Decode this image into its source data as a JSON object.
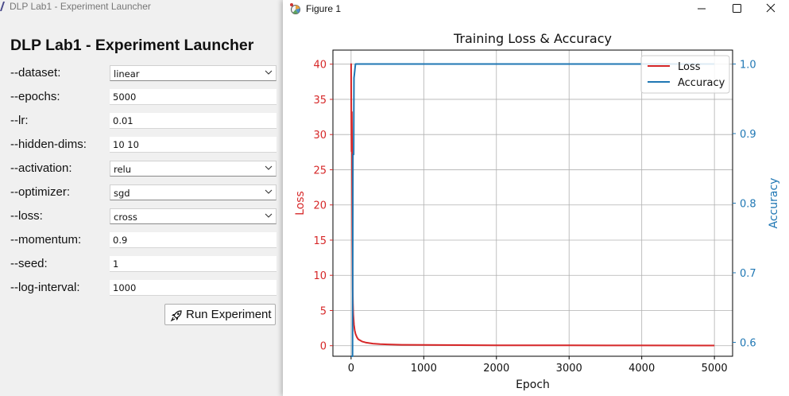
{
  "launcher": {
    "window_title": "DLP Lab1 - Experiment Launcher",
    "heading": "DLP Lab1 - Experiment Launcher",
    "fields": [
      {
        "label": "--dataset:",
        "value": "linear",
        "type": "select"
      },
      {
        "label": "--epochs:",
        "value": "5000",
        "type": "entry"
      },
      {
        "label": "--lr:",
        "value": "0.01",
        "type": "entry"
      },
      {
        "label": "--hidden-dims:",
        "value": "10 10",
        "type": "entry"
      },
      {
        "label": "--activation:",
        "value": "relu",
        "type": "select"
      },
      {
        "label": "--optimizer:",
        "value": "sgd",
        "type": "select"
      },
      {
        "label": "--loss:",
        "value": "cross",
        "type": "select"
      },
      {
        "label": "--momentum:",
        "value": "0.9",
        "type": "entry"
      },
      {
        "label": "--seed:",
        "value": "1",
        "type": "entry"
      },
      {
        "label": "--log-interval:",
        "value": "1000",
        "type": "entry"
      }
    ],
    "run_button_label": "Run Experiment",
    "run_button_icon": "rocket-icon"
  },
  "figure": {
    "window_title": "Figure 1",
    "controls": [
      "minimize-icon",
      "maximize-icon",
      "close-icon"
    ]
  },
  "chart_data": {
    "type": "line",
    "title": "Training Loss & Accuracy",
    "xlabel": "Epoch",
    "ylabel_left": "Loss",
    "ylabel_right": "Accuracy",
    "xlim": [
      -250,
      5250
    ],
    "ylim_left": [
      -1.5,
      42
    ],
    "ylim_right": [
      0.58,
      1.02
    ],
    "xticks": [
      0,
      1000,
      2000,
      3000,
      4000,
      5000
    ],
    "yticks_left": [
      0,
      5,
      10,
      15,
      20,
      25,
      30,
      35,
      40
    ],
    "yticks_right": [
      0.6,
      0.7,
      0.8,
      0.9,
      1.0
    ],
    "grid": true,
    "legend_position": "top-right",
    "series": [
      {
        "name": "Loss",
        "axis": "left",
        "color": "#d62728",
        "x": [
          0,
          2,
          4,
          6,
          8,
          10,
          12,
          14,
          16,
          18,
          20,
          22,
          25,
          30,
          40,
          50,
          60,
          80,
          100,
          150,
          200,
          300,
          400,
          500,
          700,
          1000,
          1500,
          2000,
          3000,
          4000,
          5000
        ],
        "y": [
          40.1,
          36,
          31,
          27.6,
          29,
          33.2,
          29.5,
          25,
          20,
          15,
          11,
          8,
          6,
          4.5,
          3,
          2.2,
          1.7,
          1.2,
          0.9,
          0.6,
          0.45,
          0.3,
          0.22,
          0.18,
          0.13,
          0.1,
          0.08,
          0.06,
          0.05,
          0.04,
          0.03
        ]
      },
      {
        "name": "Accuracy",
        "axis": "right",
        "color": "#1f77b4",
        "x": [
          0,
          20,
          25,
          35,
          40,
          45,
          55,
          60,
          5000
        ],
        "y": [
          0.58,
          0.58,
          0.87,
          0.87,
          0.98,
          0.985,
          0.995,
          1.0,
          1.0
        ]
      }
    ],
    "axis_colors": {
      "left": "#d62728",
      "right": "#1f77b4"
    }
  }
}
